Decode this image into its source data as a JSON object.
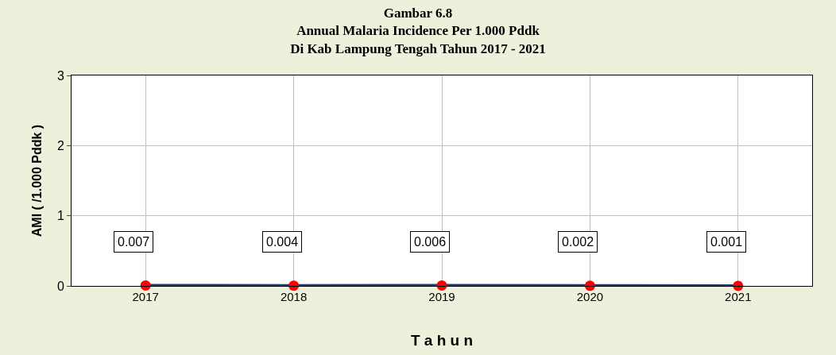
{
  "chart_data": {
    "type": "line",
    "title": "Gambar 6.8\nAnnual Malaria Incidence Per 1.000 Pddk\nDi Kab Lampung Tengah Tahun 2017 - 2021",
    "xlabel": "T a h u n",
    "ylabel": "AMI ( /1.000 Pddk )",
    "categories": [
      "2017",
      "2018",
      "2019",
      "2020",
      "2021"
    ],
    "series": [
      {
        "color": "#1f3a7a",
        "colors": [
          "#ff0000",
          "#ff0000",
          "#ff0000",
          "#ff0000",
          "#ff0000"
        ],
        "values": [
          0.007,
          0.004,
          0.006,
          0.002,
          0.001
        ]
      }
    ],
    "ylim": [
      0,
      3
    ],
    "yticks": [
      0,
      1,
      2,
      3
    ],
    "grid": true,
    "marker": "circle",
    "data_labels": true
  }
}
